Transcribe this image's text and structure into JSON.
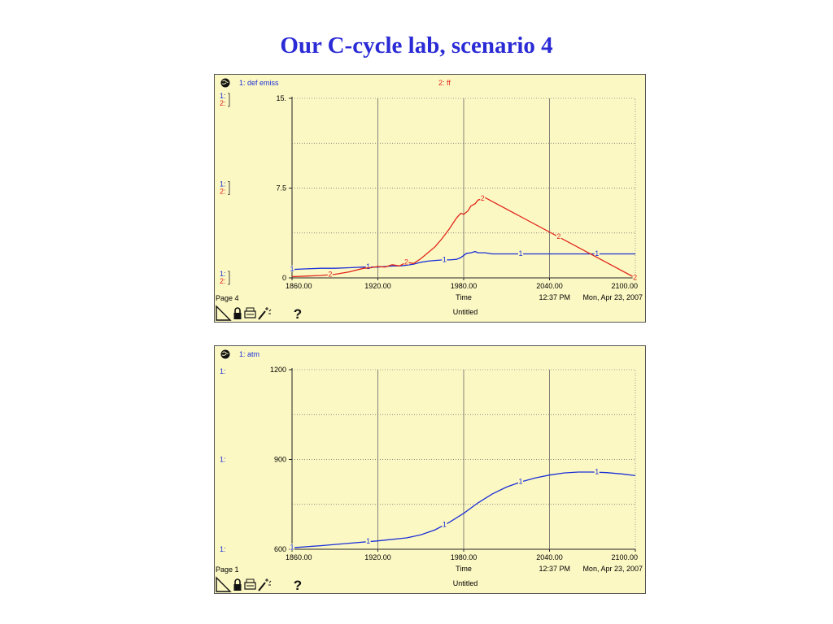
{
  "title": "Our C-cycle lab, scenario 4",
  "colors": {
    "panel_bg": "#fcf8c4",
    "border": "#555555",
    "series_blue": "#1a2fd6",
    "series_red": "#e0261a",
    "title": "#2b2bd6"
  },
  "chart_data": [
    {
      "type": "line",
      "page_label": "Page 4",
      "footer_title": "Untitled",
      "footer_time": "12:37 PM",
      "footer_date": "Mon, Apr 23, 2007",
      "xlabel": "Time",
      "x_ticks": [
        "1860.00",
        "1920.00",
        "1980.00",
        "2040.00",
        "2100.00"
      ],
      "xlim": [
        1860,
        2100
      ],
      "y_ticks": [
        "15.",
        "7.5",
        "0"
      ],
      "ylim": [
        0,
        15
      ],
      "grid": true,
      "left_markers": [
        "1:",
        "2:"
      ],
      "series": [
        {
          "name": "1: def emiss",
          "marker": "1",
          "color": "#1a2fd6",
          "x": [
            1860,
            1870,
            1880,
            1890,
            1900,
            1910,
            1920,
            1925,
            1930,
            1935,
            1940,
            1945,
            1950,
            1955,
            1960,
            1965,
            1970,
            1975,
            1978,
            1982,
            1985,
            1988,
            1990,
            1992,
            1995,
            2000,
            2020,
            2040,
            2060,
            2080,
            2100
          ],
          "values": [
            0.7,
            0.75,
            0.8,
            0.8,
            0.85,
            0.9,
            0.9,
            0.95,
            1.0,
            1.0,
            1.05,
            1.15,
            1.3,
            1.4,
            1.45,
            1.5,
            1.5,
            1.55,
            1.7,
            2.05,
            2.1,
            2.2,
            2.1,
            2.1,
            2.1,
            2.0,
            2.0,
            2.0,
            2.0,
            2.0,
            2.0
          ]
        },
        {
          "name": "2: ff",
          "marker": "2",
          "color": "#e0261a",
          "x": [
            1860,
            1870,
            1880,
            1890,
            1900,
            1910,
            1915,
            1920,
            1925,
            1930,
            1935,
            1940,
            1945,
            1950,
            1955,
            1960,
            1965,
            1970,
            1975,
            1978,
            1980,
            1983,
            1985,
            1988,
            1990,
            1993,
            1995,
            2100
          ],
          "values": [
            0.1,
            0.15,
            0.2,
            0.3,
            0.5,
            0.8,
            0.85,
            0.95,
            0.9,
            1.1,
            1.0,
            1.3,
            1.2,
            1.6,
            2.1,
            2.6,
            3.3,
            4.1,
            5.0,
            5.4,
            5.3,
            5.6,
            6.0,
            6.2,
            6.5,
            6.6,
            6.7,
            0.0
          ]
        }
      ]
    },
    {
      "type": "line",
      "page_label": "Page 1",
      "footer_title": "Untitled",
      "footer_time": "12:37 PM",
      "footer_date": "Mon, Apr 23, 2007",
      "xlabel": "Time",
      "x_ticks": [
        "1860.00",
        "1920.00",
        "1980.00",
        "2040.00",
        "2100.00"
      ],
      "xlim": [
        1860,
        2100
      ],
      "y_ticks": [
        "1200",
        "900",
        "600"
      ],
      "ylim": [
        600,
        1200
      ],
      "grid": true,
      "left_markers": [
        "1:"
      ],
      "series": [
        {
          "name": "1: atm",
          "marker": "1",
          "color": "#1a2fd6",
          "x": [
            1860,
            1880,
            1900,
            1920,
            1940,
            1950,
            1960,
            1970,
            1980,
            1990,
            2000,
            2010,
            2020,
            2030,
            2040,
            2050,
            2060,
            2070,
            2080,
            2090,
            2100
          ],
          "values": [
            605,
            612,
            620,
            628,
            638,
            648,
            665,
            690,
            720,
            755,
            785,
            808,
            825,
            838,
            848,
            855,
            858,
            858,
            856,
            852,
            846
          ]
        }
      ]
    }
  ]
}
